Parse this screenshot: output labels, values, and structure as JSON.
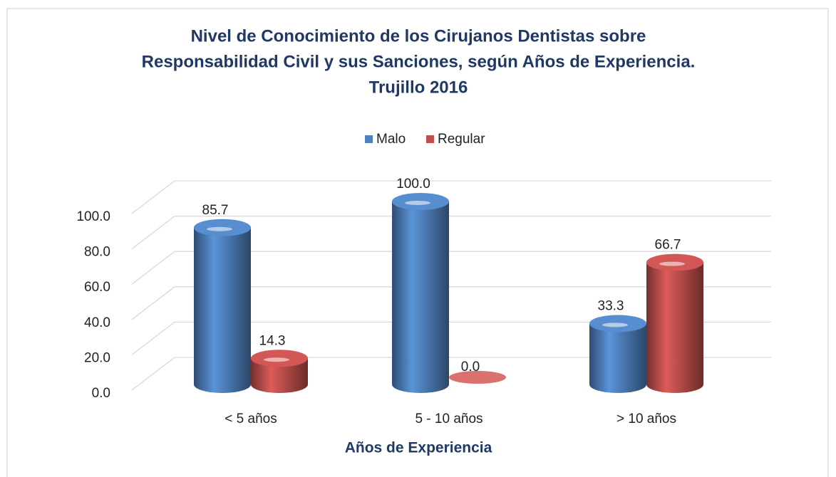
{
  "chart_data": {
    "type": "bar3d",
    "title": [
      "Nivel de Conocimiento de los Cirujanos Dentistas sobre",
      "Responsabilidad Civil y sus Sanciones, según Años de Experiencia.",
      "Trujillo 2016"
    ],
    "x_label": "Años de Experiencia",
    "categories": [
      "< 5 años",
      "5 - 10 años",
      "> 10 años"
    ],
    "series": [
      {
        "name": "Malo",
        "color": "#4F81BD",
        "values": [
          85.7,
          100,
          33.3
        ],
        "value_labels": [
          "85.7",
          "100.0",
          "33.3"
        ]
      },
      {
        "name": "Regular",
        "color": "#C0504D",
        "values": [
          14.3,
          0,
          66.7
        ],
        "value_labels": [
          "14.3",
          "0.0",
          "66.7"
        ]
      }
    ],
    "ylim": [
      0,
      100
    ],
    "yticks": [
      {
        "value": 0,
        "label": "0.0"
      },
      {
        "value": 20,
        "label": "20.0"
      },
      {
        "value": 40,
        "label": "40.0"
      },
      {
        "value": 60,
        "label": "60.0"
      },
      {
        "value": 80,
        "label": "80.0"
      },
      {
        "value": 100,
        "label": "100.0"
      }
    ],
    "grid": true,
    "legend": "top"
  }
}
